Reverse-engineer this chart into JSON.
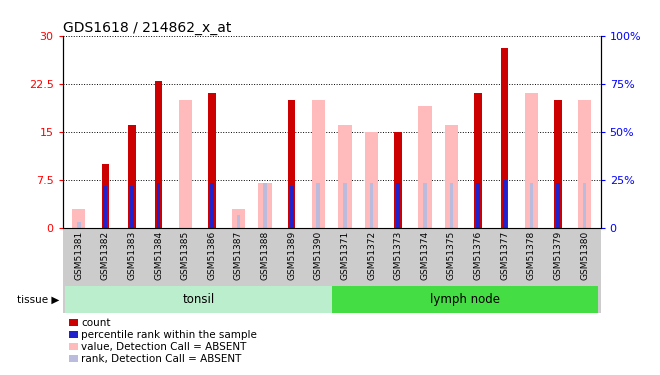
{
  "title": "GDS1618 / 214862_x_at",
  "samples": [
    "GSM51381",
    "GSM51382",
    "GSM51383",
    "GSM51384",
    "GSM51385",
    "GSM51386",
    "GSM51387",
    "GSM51388",
    "GSM51389",
    "GSM51390",
    "GSM51371",
    "GSM51372",
    "GSM51373",
    "GSM51374",
    "GSM51375",
    "GSM51376",
    "GSM51377",
    "GSM51378",
    "GSM51379",
    "GSM51380"
  ],
  "count_values": [
    0,
    10,
    16,
    23,
    0,
    21,
    0,
    0,
    20,
    0,
    0,
    0,
    15,
    0,
    0,
    21,
    28,
    0,
    20,
    0
  ],
  "rank_values": [
    0,
    6.5,
    6.5,
    7.0,
    0,
    7.0,
    0,
    0,
    6.5,
    0,
    0,
    0,
    7.0,
    0,
    0,
    7.0,
    7.5,
    0,
    7.0,
    0
  ],
  "absent_val_values": [
    3,
    0,
    0,
    0,
    20,
    0,
    3,
    7,
    0,
    20,
    16,
    15,
    0,
    19,
    16,
    0,
    0,
    21,
    0,
    20
  ],
  "absent_rank_values": [
    1,
    6,
    0,
    0,
    0,
    0,
    2,
    7,
    0,
    7,
    7,
    7,
    0,
    7,
    7,
    0,
    0,
    7,
    0,
    7
  ],
  "tonsil_count": 10,
  "lymph_count": 10,
  "left_ylim": [
    0,
    30
  ],
  "right_ylim": [
    0,
    100
  ],
  "left_yticks": [
    0,
    7.5,
    15,
    22.5,
    30
  ],
  "right_yticks": [
    0,
    25,
    50,
    75,
    100
  ],
  "left_tick_labels": [
    "0",
    "7.5",
    "15",
    "22.5",
    "30"
  ],
  "right_tick_labels": [
    "0",
    "25%",
    "50%",
    "75%",
    "100%"
  ],
  "color_count": "#cc0000",
  "color_rank": "#2222cc",
  "color_absent_value": "#ffbbbb",
  "color_absent_rank": "#bbbbdd",
  "tonsil_color": "#bbeecc",
  "lymph_color": "#44dd44",
  "xlabels_bg": "#cccccc",
  "title_fontsize": 10
}
